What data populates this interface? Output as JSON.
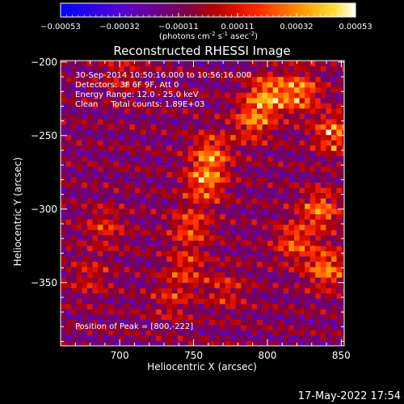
{
  "chart_data": {
    "type": "heatmap",
    "title": "Reconstructed RHESSI Image",
    "xlabel": "Heliocentric X (arcsec)",
    "ylabel": "Heliocentric Y (arcsec)",
    "xlim": [
      660,
      852
    ],
    "ylim": [
      -393,
      -199
    ],
    "xticks": [
      700,
      750,
      800,
      850
    ],
    "yticks": [
      -200,
      -250,
      -300,
      -350
    ],
    "colorbar": {
      "range": [
        -0.00053,
        0.00053
      ],
      "ticks": [
        "-0.00053",
        "-0.00032",
        "-0.00011",
        "0.00011",
        "0.00032",
        "0.00053"
      ],
      "unit_label": "(photons cm",
      "unit_sup1": "-2",
      "unit_mid": " s",
      "unit_sup2": "-1",
      "unit_mid2": " asec",
      "unit_sup3": "-2",
      "unit_end": ")"
    },
    "annotations": [
      "30-Sep-2014 10:50:16.000 to 10:56:16.000",
      "Detectors: 3F 6F 9F, Att 0",
      "Energy Range: 12.0 - 25.0 keV",
      "Clean     Total counts: 1.89E+03"
    ],
    "peak_label": "Position of Peak = [800,-222]",
    "sources": [
      {
        "x": 758,
        "y": -282,
        "amp": 0.00048
      },
      {
        "x": 762,
        "y": -262,
        "amp": 0.00046
      },
      {
        "x": 748,
        "y": -312,
        "amp": 0.00038
      },
      {
        "x": 745,
        "y": -340,
        "amp": 0.0003
      },
      {
        "x": 800,
        "y": -222,
        "amp": 0.00053
      },
      {
        "x": 822,
        "y": -220,
        "amp": 0.0005
      },
      {
        "x": 790,
        "y": -240,
        "amp": 0.00044
      },
      {
        "x": 845,
        "y": -248,
        "amp": 0.00048
      },
      {
        "x": 836,
        "y": -300,
        "amp": 0.00046
      },
      {
        "x": 840,
        "y": -340,
        "amp": 0.0005
      },
      {
        "x": 818,
        "y": -322,
        "amp": 0.0004
      },
      {
        "x": 690,
        "y": -312,
        "amp": 0.00028
      },
      {
        "x": 680,
        "y": -346,
        "amp": 0.00022
      },
      {
        "x": 702,
        "y": -210,
        "amp": 0.0002
      },
      {
        "x": 735,
        "y": -362,
        "amp": 0.00024
      },
      {
        "x": 772,
        "y": -355,
        "amp": 0.00026
      }
    ]
  },
  "footer_date": "17-May-2022 17:54"
}
